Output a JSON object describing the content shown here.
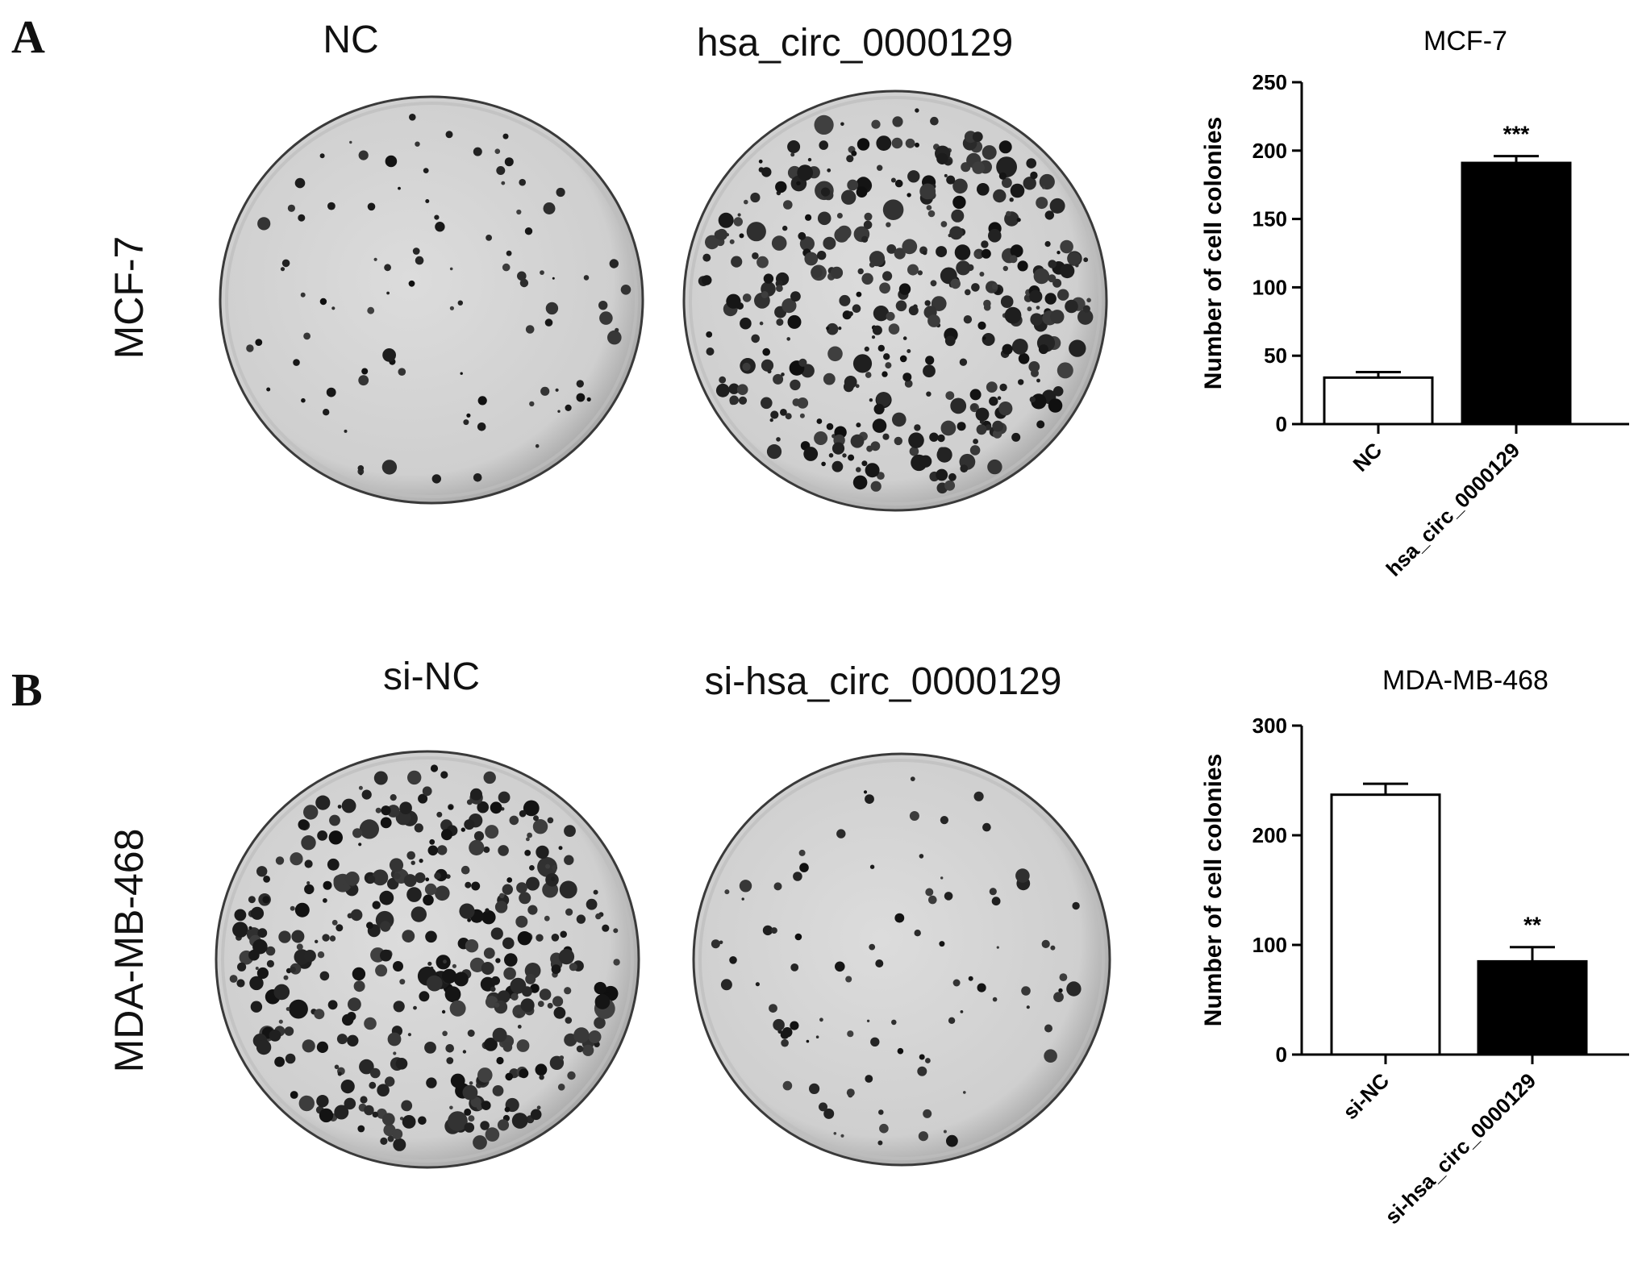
{
  "panels": [
    {
      "letter": "A",
      "cell_line": "MCF-7",
      "plates": [
        {
          "label": "NC",
          "colony_level": "sparse"
        },
        {
          "label": "hsa_circ_0000129",
          "colony_level": "dense"
        }
      ]
    },
    {
      "letter": "B",
      "cell_line": "MDA-MB-468",
      "plates": [
        {
          "label": "si-NC",
          "colony_level": "dense"
        },
        {
          "label": "si-hsa_circ_0000129",
          "colony_level": "sparse"
        }
      ]
    }
  ],
  "chart_data": [
    {
      "type": "bar",
      "title": "MCF-7",
      "xlabel": "",
      "ylabel": "Number of cell colonies",
      "ylim": [
        0,
        250
      ],
      "yticks": [
        0,
        50,
        100,
        150,
        200,
        250
      ],
      "categories": [
        "NC",
        "hsa_circ_0000129"
      ],
      "values": [
        34,
        191
      ],
      "errors": [
        4,
        5
      ],
      "bar_colors": [
        "#ffffff",
        "#000000"
      ],
      "annotations": [
        "",
        "***"
      ],
      "grid": false
    },
    {
      "type": "bar",
      "title": "MDA-MB-468",
      "xlabel": "",
      "ylabel": "Number of cell colonies",
      "ylim": [
        0,
        300
      ],
      "yticks": [
        0,
        100,
        200,
        300
      ],
      "categories": [
        "si-NC",
        "si-hsa_circ_0000129"
      ],
      "values": [
        237,
        85
      ],
      "errors": [
        10,
        13
      ],
      "bar_colors": [
        "#ffffff",
        "#000000"
      ],
      "annotations": [
        "",
        "**"
      ],
      "grid": false
    }
  ]
}
